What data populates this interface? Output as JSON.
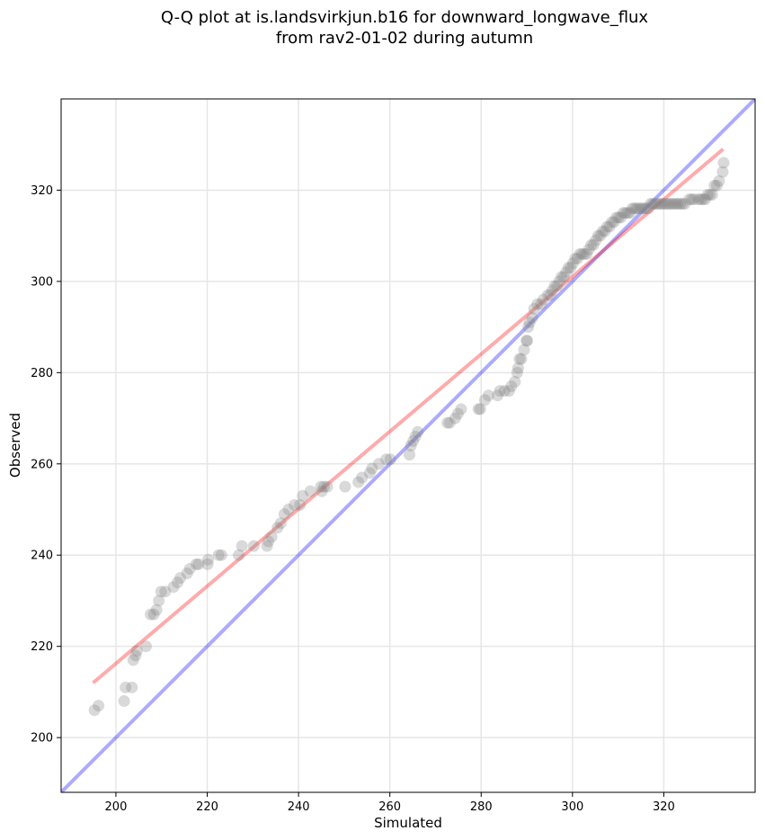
{
  "title_line1": "Q-Q plot at is.landsvirkjun.b16 for downward_longwave_flux",
  "title_line2": "from rav2-01-02 during autumn",
  "chart_data": {
    "type": "scatter",
    "title": "Q-Q plot at is.landsvirkjun.b16 for downward_longwave_flux\nfrom rav2-01-02 during autumn",
    "xlabel": "Simulated",
    "ylabel": "Observed",
    "xlim": [
      188,
      340
    ],
    "ylim": [
      188,
      340
    ],
    "xticks": [
      200,
      220,
      240,
      260,
      280,
      300,
      320
    ],
    "yticks": [
      200,
      220,
      240,
      260,
      280,
      300,
      320
    ],
    "grid": true,
    "marker_color": "#808080",
    "identity_line_color": "#0000ff",
    "fit_line_color": "#ff0000",
    "identity_line": {
      "x": [
        188,
        340
      ],
      "y": [
        188,
        340
      ]
    },
    "fit_line": {
      "x": [
        195,
        333
      ],
      "y": [
        212,
        329
      ]
    },
    "points": [
      [
        195.3,
        206
      ],
      [
        196.2,
        207
      ],
      [
        201.8,
        208
      ],
      [
        202.1,
        211
      ],
      [
        203.5,
        211
      ],
      [
        203.8,
        217
      ],
      [
        204.3,
        218
      ],
      [
        204.6,
        219
      ],
      [
        206.6,
        220
      ],
      [
        207.6,
        227
      ],
      [
        208.3,
        227
      ],
      [
        208.9,
        228
      ],
      [
        209.4,
        230
      ],
      [
        209.9,
        232
      ],
      [
        210.8,
        232
      ],
      [
        212.6,
        233
      ],
      [
        213.5,
        234
      ],
      [
        214.1,
        235
      ],
      [
        215.6,
        236
      ],
      [
        216.2,
        237
      ],
      [
        217.6,
        238
      ],
      [
        218.1,
        238
      ],
      [
        220.1,
        238
      ],
      [
        220.2,
        239
      ],
      [
        222.5,
        240
      ],
      [
        223.1,
        240
      ],
      [
        226.9,
        240
      ],
      [
        227.6,
        242
      ],
      [
        230.2,
        242
      ],
      [
        233.1,
        242
      ],
      [
        233.4,
        243
      ],
      [
        234.1,
        244
      ],
      [
        235.4,
        246
      ],
      [
        236.1,
        247
      ],
      [
        236.9,
        249
      ],
      [
        237.8,
        250
      ],
      [
        239.1,
        251
      ],
      [
        240.3,
        251
      ],
      [
        240.9,
        253
      ],
      [
        242.6,
        254
      ],
      [
        244.9,
        255
      ],
      [
        245.1,
        254
      ],
      [
        245.6,
        255
      ],
      [
        246.3,
        255
      ],
      [
        250.2,
        255
      ],
      [
        253.1,
        256
      ],
      [
        253.9,
        257
      ],
      [
        255.6,
        258
      ],
      [
        256.1,
        259
      ],
      [
        257.6,
        260
      ],
      [
        259.2,
        261
      ],
      [
        260.1,
        261
      ],
      [
        264.3,
        262
      ],
      [
        264.6,
        264
      ],
      [
        265.1,
        265
      ],
      [
        265.6,
        266
      ],
      [
        266.1,
        267
      ],
      [
        272.6,
        269
      ],
      [
        273.1,
        269
      ],
      [
        274.3,
        270
      ],
      [
        274.9,
        271
      ],
      [
        275.6,
        272
      ],
      [
        279.4,
        272
      ],
      [
        279.8,
        272
      ],
      [
        280.8,
        274
      ],
      [
        281.6,
        275
      ],
      [
        283.6,
        275
      ],
      [
        284.1,
        276
      ],
      [
        285.1,
        276
      ],
      [
        286.1,
        276
      ],
      [
        286.6,
        277
      ],
      [
        287.4,
        278
      ],
      [
        287.9,
        280
      ],
      [
        288.1,
        281
      ],
      [
        288.4,
        283
      ],
      [
        288.8,
        283
      ],
      [
        289.4,
        285
      ],
      [
        289.9,
        287
      ],
      [
        290.1,
        287
      ],
      [
        290.3,
        290
      ],
      [
        290.6,
        291
      ],
      [
        291.2,
        292
      ],
      [
        291.6,
        294
      ],
      [
        292.3,
        295
      ],
      [
        293.1,
        295
      ],
      [
        293.6,
        296
      ],
      [
        294.6,
        297
      ],
      [
        295.1,
        297
      ],
      [
        295.6,
        298
      ],
      [
        296.1,
        299
      ],
      [
        296.6,
        299
      ],
      [
        297.1,
        300
      ],
      [
        297.6,
        301
      ],
      [
        298.1,
        301
      ],
      [
        298.6,
        302
      ],
      [
        299.1,
        303
      ],
      [
        299.6,
        303
      ],
      [
        300.1,
        304
      ],
      [
        300.6,
        305
      ],
      [
        301.1,
        305
      ],
      [
        301.6,
        306
      ],
      [
        302.1,
        306
      ],
      [
        302.6,
        306
      ],
      [
        303.1,
        306
      ],
      [
        303.6,
        307
      ],
      [
        304.1,
        308
      ],
      [
        304.6,
        308
      ],
      [
        305.1,
        309
      ],
      [
        305.6,
        310
      ],
      [
        306.1,
        310
      ],
      [
        306.6,
        311
      ],
      [
        307.1,
        311
      ],
      [
        307.6,
        312
      ],
      [
        308.1,
        312
      ],
      [
        308.6,
        313
      ],
      [
        309.1,
        313
      ],
      [
        309.6,
        314
      ],
      [
        310.1,
        314
      ],
      [
        310.6,
        314
      ],
      [
        311.1,
        315
      ],
      [
        311.6,
        315
      ],
      [
        312.1,
        315
      ],
      [
        312.6,
        315
      ],
      [
        313.1,
        316
      ],
      [
        313.6,
        316
      ],
      [
        314.1,
        316
      ],
      [
        314.6,
        316
      ],
      [
        315.1,
        316
      ],
      [
        315.6,
        316
      ],
      [
        316.1,
        316
      ],
      [
        316.6,
        316
      ],
      [
        317.1,
        317
      ],
      [
        317.6,
        317
      ],
      [
        318.1,
        317
      ],
      [
        318.6,
        317
      ],
      [
        319.1,
        317
      ],
      [
        319.6,
        317
      ],
      [
        320.1,
        317
      ],
      [
        320.6,
        317
      ],
      [
        321.1,
        317
      ],
      [
        321.6,
        317
      ],
      [
        322.1,
        317
      ],
      [
        322.6,
        317
      ],
      [
        323.1,
        317
      ],
      [
        323.6,
        317
      ],
      [
        324.1,
        317
      ],
      [
        324.6,
        317
      ],
      [
        325.6,
        318
      ],
      [
        326.1,
        318
      ],
      [
        326.6,
        318
      ],
      [
        327.6,
        318
      ],
      [
        328.1,
        318
      ],
      [
        328.6,
        318
      ],
      [
        329.1,
        318
      ],
      [
        329.6,
        319
      ],
      [
        330.1,
        319
      ],
      [
        330.6,
        319
      ],
      [
        331.1,
        321
      ],
      [
        331.6,
        321
      ],
      [
        332.1,
        322
      ],
      [
        332.9,
        324
      ],
      [
        333.1,
        326
      ]
    ]
  }
}
